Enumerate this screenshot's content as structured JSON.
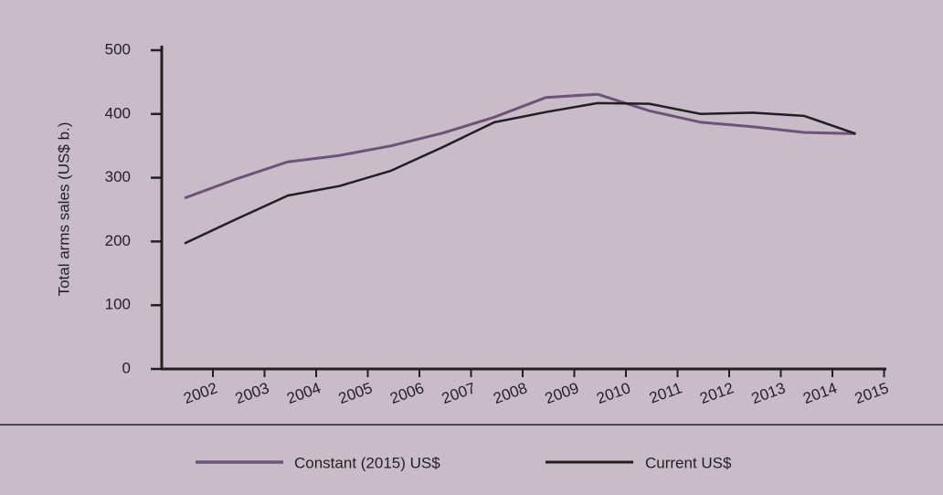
{
  "colors": {
    "background": "#c8bcc9",
    "axis": "#231f20",
    "constant_series": "#6c5478",
    "current_series": "#231f20"
  },
  "chart_data": {
    "type": "line",
    "title": "",
    "xlabel": "",
    "ylabel": "Total arms sales (US$ b.)",
    "categories": [
      "2002",
      "2003",
      "2004",
      "2005",
      "2006",
      "2007",
      "2008",
      "2009",
      "2010",
      "2011",
      "2012",
      "2013",
      "2014",
      "2015"
    ],
    "ylim": [
      0,
      500
    ],
    "yticks": [
      0,
      100,
      200,
      300,
      400,
      500
    ],
    "grid": false,
    "legend_position": "bottom",
    "series": [
      {
        "name": "Constant (2015) US$",
        "color": "#6c5478",
        "values": [
          268,
          298,
          325,
          335,
          350,
          370,
          395,
          426,
          431,
          405,
          387,
          380,
          371,
          369
        ]
      },
      {
        "name": "Current US$",
        "color": "#231f20",
        "values": [
          197,
          235,
          272,
          287,
          311,
          348,
          387,
          403,
          417,
          416,
          400,
          402,
          397,
          369
        ]
      }
    ]
  }
}
